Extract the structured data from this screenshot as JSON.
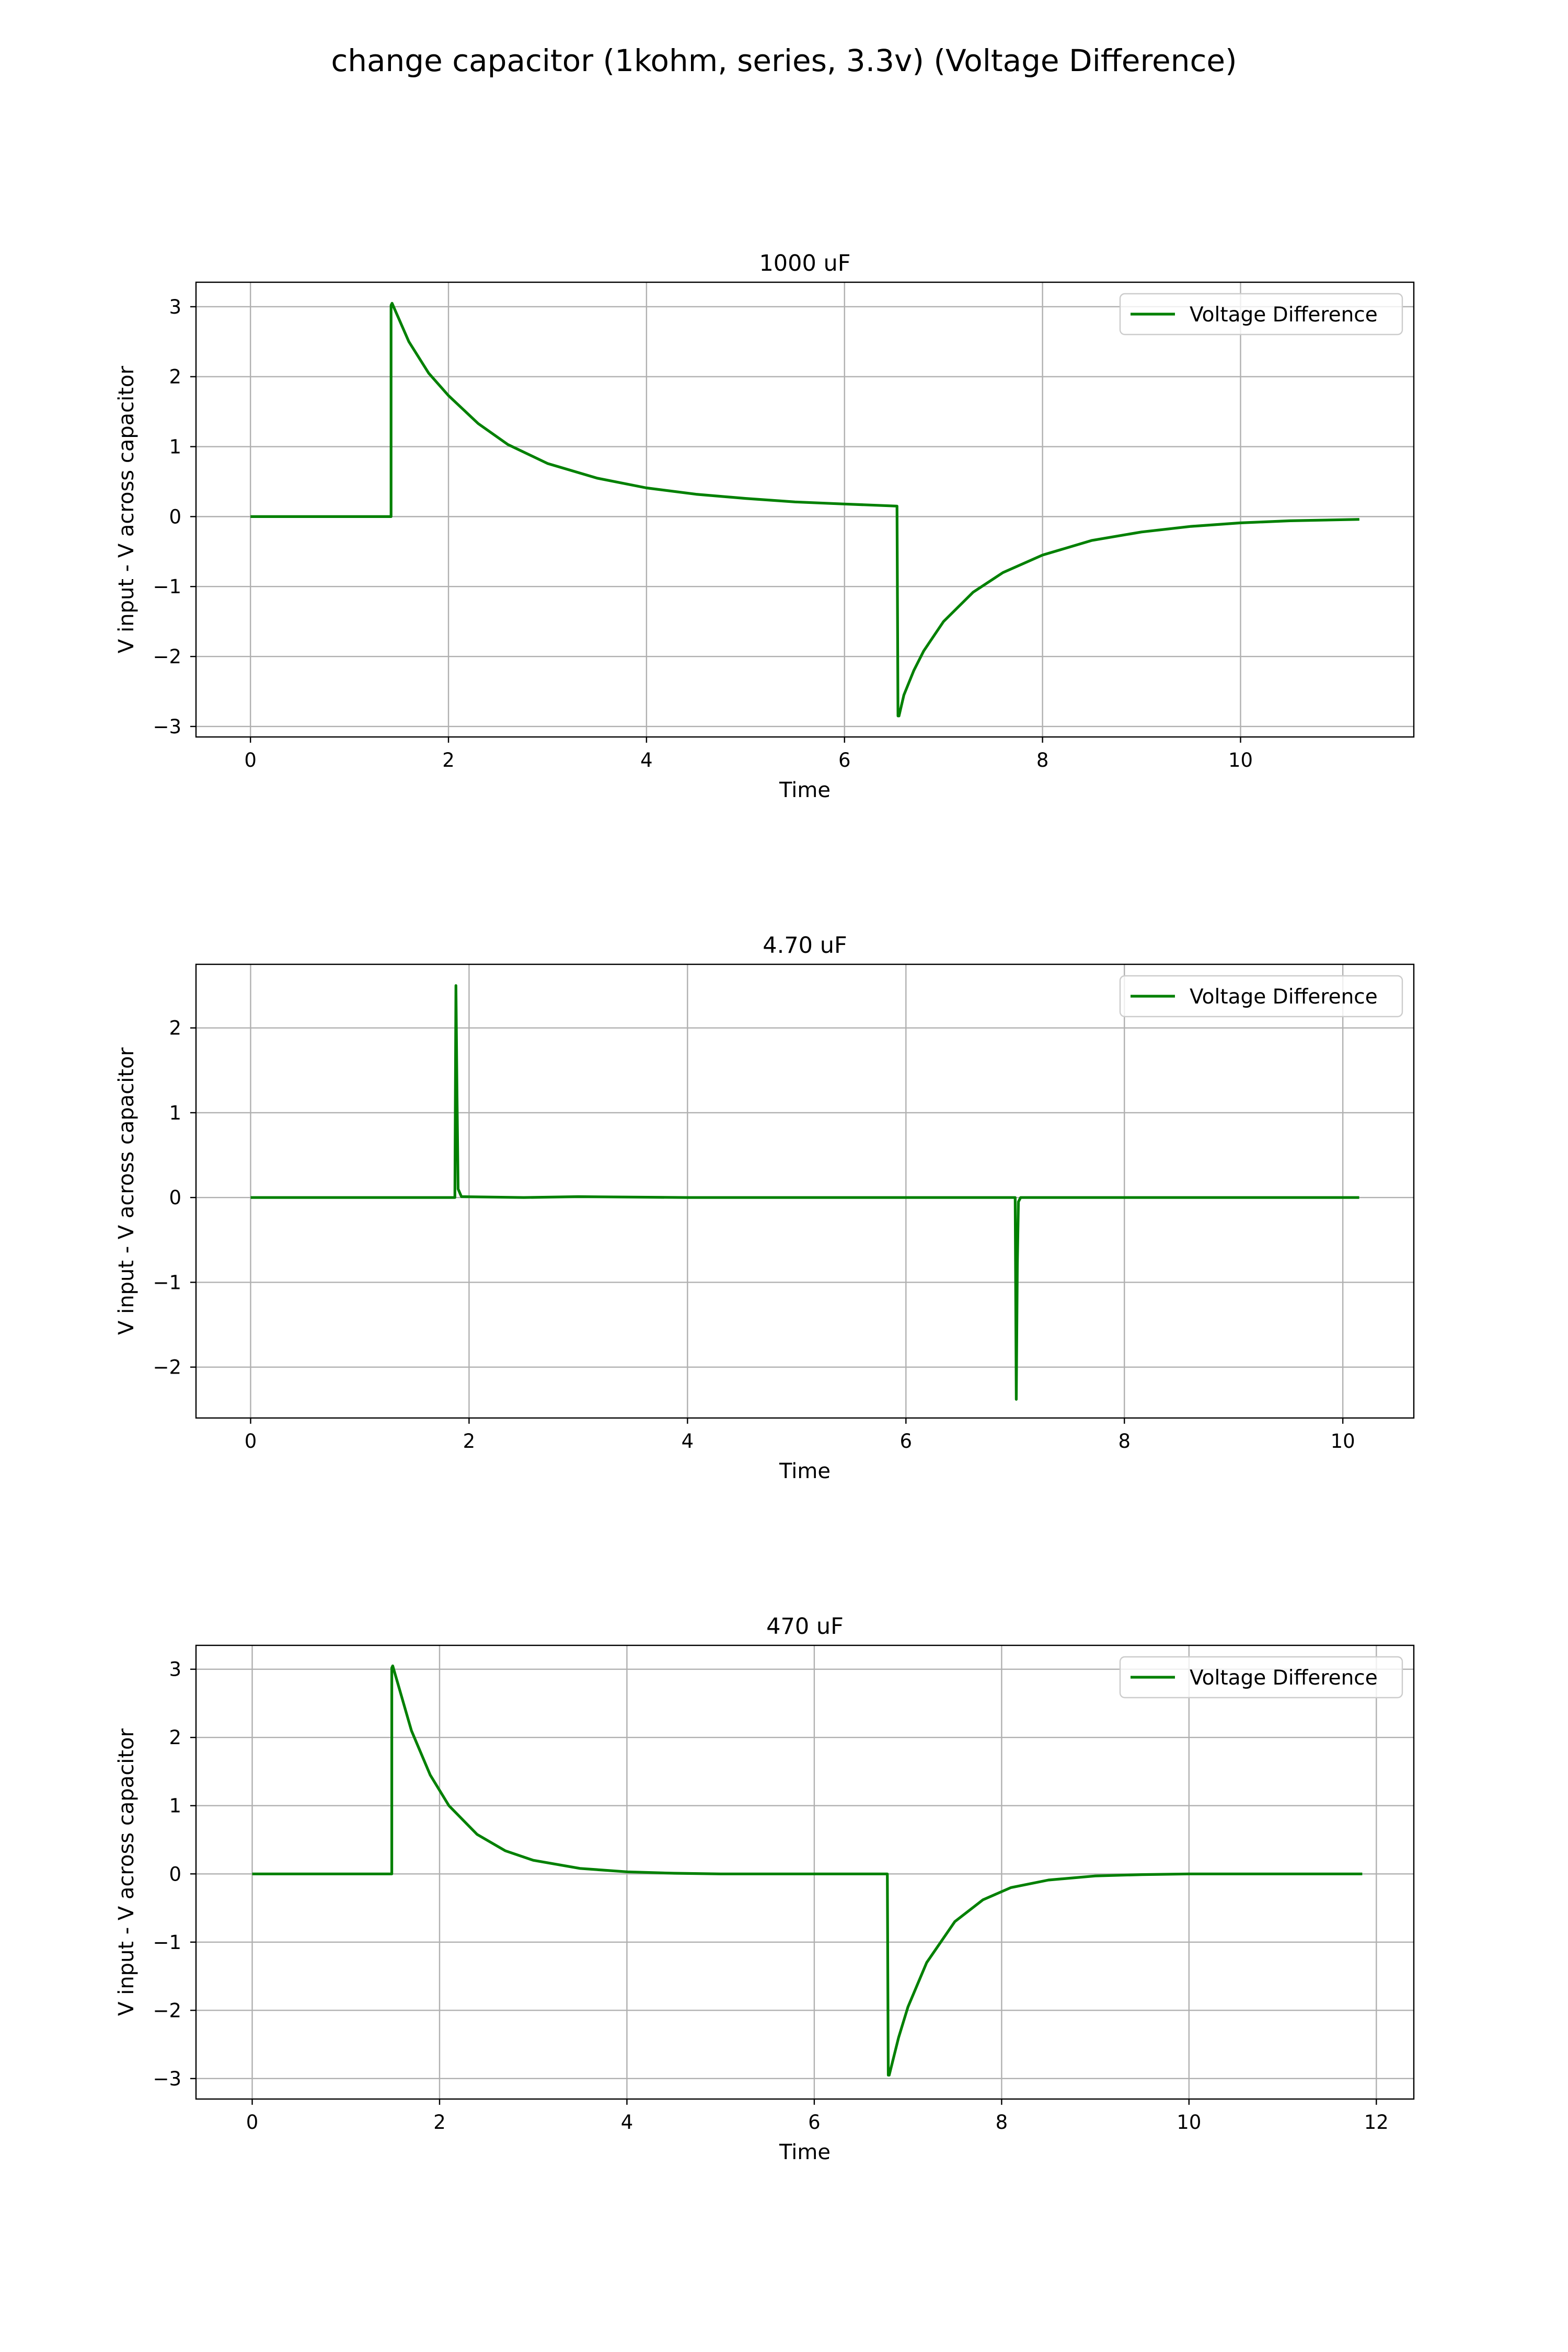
{
  "figure": {
    "title": "change capacitor (1kohm, series, 3.3v) (Voltage Difference)"
  },
  "chart_data": [
    {
      "type": "line",
      "title": "1000 uF",
      "xlabel": "Time",
      "ylabel": "V input - V across capacitor",
      "xlim": [
        -0.55,
        11.75
      ],
      "ylim": [
        -3.15,
        3.35
      ],
      "xticks": [
        0,
        2,
        4,
        6,
        8,
        10
      ],
      "xtick_labels": [
        "0",
        "2",
        "4",
        "6",
        "8",
        "10"
      ],
      "yticks": [
        3,
        2,
        1,
        0,
        -1,
        -2,
        -3
      ],
      "ytick_labels": [
        "3",
        "2",
        "1",
        "0",
        "−1",
        "−2",
        "−3"
      ],
      "grid": true,
      "legend": "top-right",
      "color": "#008000",
      "series": [
        {
          "name": "Voltage Difference",
          "x": [
            0,
            1.42,
            1.42,
            1.43,
            1.6,
            1.8,
            2.0,
            2.3,
            2.6,
            3.0,
            3.5,
            4.0,
            4.5,
            5.0,
            5.5,
            6.0,
            6.53,
            6.54,
            6.55,
            6.6,
            6.7,
            6.8,
            7.0,
            7.3,
            7.6,
            8.0,
            8.5,
            9.0,
            9.5,
            10.0,
            10.5,
            11.2
          ],
          "y": [
            0,
            0,
            3.02,
            3.05,
            2.5,
            2.05,
            1.73,
            1.33,
            1.03,
            0.76,
            0.55,
            0.41,
            0.32,
            0.26,
            0.21,
            0.18,
            0.15,
            -2.85,
            -2.85,
            -2.55,
            -2.2,
            -1.92,
            -1.5,
            -1.08,
            -0.8,
            -0.55,
            -0.34,
            -0.22,
            -0.14,
            -0.09,
            -0.06,
            -0.04
          ]
        }
      ]
    },
    {
      "type": "line",
      "title": "4.70 uF",
      "xlabel": "Time",
      "ylabel": "V input - V across capacitor",
      "xlim": [
        -0.5,
        10.65
      ],
      "ylim": [
        -2.6,
        2.75
      ],
      "xticks": [
        0,
        2,
        4,
        6,
        8,
        10
      ],
      "xtick_labels": [
        "0",
        "2",
        "4",
        "6",
        "8",
        "10"
      ],
      "yticks": [
        2,
        1,
        0,
        -1,
        -2
      ],
      "ytick_labels": [
        "2",
        "1",
        "0",
        "−1",
        "−2"
      ],
      "grid": true,
      "legend": "top-right",
      "color": "#008000",
      "series": [
        {
          "name": "Voltage Difference",
          "x": [
            0,
            1.87,
            1.88,
            1.89,
            1.9,
            1.93,
            2.5,
            3.0,
            4.0,
            5.0,
            6.0,
            7.0,
            7.01,
            7.02,
            7.03,
            7.05,
            8.0,
            9.0,
            10.15
          ],
          "y": [
            0,
            0,
            2.5,
            1.2,
            0.1,
            0.01,
            0.0,
            0.01,
            0.0,
            0.0,
            0.0,
            0.0,
            -2.38,
            -0.8,
            -0.05,
            0.0,
            0.0,
            0.0,
            0.0
          ]
        }
      ]
    },
    {
      "type": "line",
      "title": "470 uF",
      "xlabel": "Time",
      "ylabel": "V input - V across capacitor",
      "xlim": [
        -0.6,
        12.4
      ],
      "ylim": [
        -3.3,
        3.35
      ],
      "xticks": [
        0,
        2,
        4,
        6,
        8,
        10,
        12
      ],
      "xtick_labels": [
        "0",
        "2",
        "4",
        "6",
        "8",
        "10",
        "12"
      ],
      "yticks": [
        3,
        2,
        1,
        0,
        -1,
        -2,
        -3
      ],
      "ytick_labels": [
        "3",
        "2",
        "1",
        "0",
        "−1",
        "−2",
        "−3"
      ],
      "grid": true,
      "legend": "top-right",
      "color": "#008000",
      "series": [
        {
          "name": "Voltage Difference",
          "x": [
            0,
            1.49,
            1.49,
            1.5,
            1.7,
            1.9,
            2.1,
            2.4,
            2.7,
            3.0,
            3.5,
            4.0,
            4.5,
            5.0,
            6.0,
            6.78,
            6.79,
            6.8,
            6.9,
            7.0,
            7.2,
            7.5,
            7.8,
            8.1,
            8.5,
            9.0,
            9.5,
            10.0,
            11.0,
            11.85
          ],
          "y": [
            0,
            0,
            3.02,
            3.05,
            2.1,
            1.45,
            1.0,
            0.58,
            0.34,
            0.2,
            0.08,
            0.03,
            0.01,
            0.0,
            0.0,
            0.0,
            -2.95,
            -2.95,
            -2.4,
            -1.95,
            -1.3,
            -0.7,
            -0.38,
            -0.2,
            -0.09,
            -0.03,
            -0.01,
            0.0,
            0.0,
            0.0
          ]
        }
      ]
    }
  ]
}
